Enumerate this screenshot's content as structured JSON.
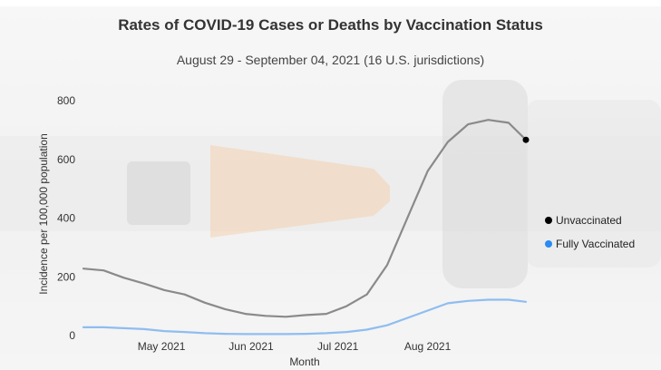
{
  "top_strip": {
    "link_text": ""
  },
  "colors": {
    "unvaccinated": "#8a8a8a",
    "unvaccinated_dot": "#000000",
    "fully_vaccinated": "#8fbdf0",
    "fully_vaccinated_dot": "#2a8bf2",
    "axis_text": "#333333"
  },
  "chart_data": {
    "type": "line",
    "title": "Rates of COVID-19 Cases or Deaths by Vaccination Status",
    "subtitle": "August 29 - September 04, 2021 (16 U.S. jurisdictions)",
    "xlabel": "Month",
    "ylabel": "Incidence per 100,000 population",
    "x_ticks": [
      "May 2021",
      "Jun 2021",
      "Jul 2021",
      "Aug 2021"
    ],
    "x_tick_dates": [
      "2021-05-01",
      "2021-06-01",
      "2021-07-01",
      "2021-08-01"
    ],
    "y_ticks": [
      0,
      200,
      400,
      600,
      800
    ],
    "ylim": [
      0,
      850
    ],
    "xlim": [
      "2021-04-04",
      "2021-09-04"
    ],
    "grid": false,
    "legend_position": "right",
    "series": [
      {
        "name": "Unvaccinated",
        "x": [
          "2021-04-04",
          "2021-04-11",
          "2021-04-18",
          "2021-04-25",
          "2021-05-02",
          "2021-05-09",
          "2021-05-16",
          "2021-05-23",
          "2021-05-30",
          "2021-06-06",
          "2021-06-13",
          "2021-06-20",
          "2021-06-27",
          "2021-07-04",
          "2021-07-11",
          "2021-07-18",
          "2021-07-25",
          "2021-08-01",
          "2021-08-08",
          "2021-08-15",
          "2021-08-22",
          "2021-08-29",
          "2021-09-04"
        ],
        "values": [
          228,
          222,
          197,
          177,
          155,
          140,
          112,
          90,
          74,
          67,
          64,
          70,
          74,
          100,
          140,
          240,
          400,
          560,
          660,
          720,
          735,
          725,
          667
        ]
      },
      {
        "name": "Fully Vaccinated",
        "x": [
          "2021-04-04",
          "2021-04-11",
          "2021-04-18",
          "2021-04-25",
          "2021-05-02",
          "2021-05-09",
          "2021-05-16",
          "2021-05-23",
          "2021-05-30",
          "2021-06-06",
          "2021-06-13",
          "2021-06-20",
          "2021-06-27",
          "2021-07-04",
          "2021-07-11",
          "2021-07-18",
          "2021-07-25",
          "2021-08-01",
          "2021-08-08",
          "2021-08-15",
          "2021-08-22",
          "2021-08-29",
          "2021-09-04"
        ],
        "values": [
          28,
          28,
          25,
          22,
          15,
          12,
          8,
          6,
          5,
          5,
          5,
          6,
          8,
          12,
          20,
          35,
          60,
          85,
          110,
          118,
          122,
          122,
          115
        ]
      }
    ]
  }
}
